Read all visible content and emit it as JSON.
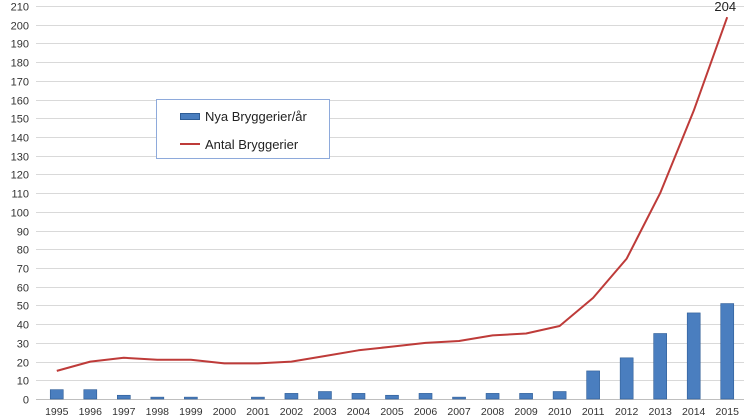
{
  "chart_data": {
    "type": "bar",
    "categories": [
      "1995",
      "1996",
      "1997",
      "1998",
      "1999",
      "2000",
      "2001",
      "2002",
      "2003",
      "2004",
      "2005",
      "2006",
      "2007",
      "2008",
      "2009",
      "2010",
      "2011",
      "2012",
      "2013",
      "2014",
      "2015"
    ],
    "series": [
      {
        "name": "Nya Bryggerier/år",
        "type": "bar",
        "color": "#4a7ebf",
        "values": [
          5,
          5,
          2,
          1,
          1,
          0,
          1,
          3,
          4,
          3,
          2,
          3,
          1,
          3,
          3,
          4,
          15,
          22,
          35,
          46,
          51
        ]
      },
      {
        "name": "Antal Bryggerier",
        "type": "line",
        "color": "#be3b39",
        "values": [
          15,
          20,
          22,
          21,
          21,
          19,
          19,
          20,
          23,
          26,
          28,
          30,
          31,
          34,
          35,
          39,
          54,
          75,
          110,
          154,
          204
        ]
      }
    ],
    "yticks": [
      "0",
      "10",
      "20",
      "30",
      "40",
      "50",
      "60",
      "70",
      "80",
      "90",
      "100",
      "110",
      "120",
      "130",
      "140",
      "150",
      "160",
      "170",
      "180",
      "190",
      "200",
      "210"
    ],
    "ylim": [
      0,
      210
    ],
    "grid": true,
    "legend": "upper-left",
    "data_label": "204"
  }
}
